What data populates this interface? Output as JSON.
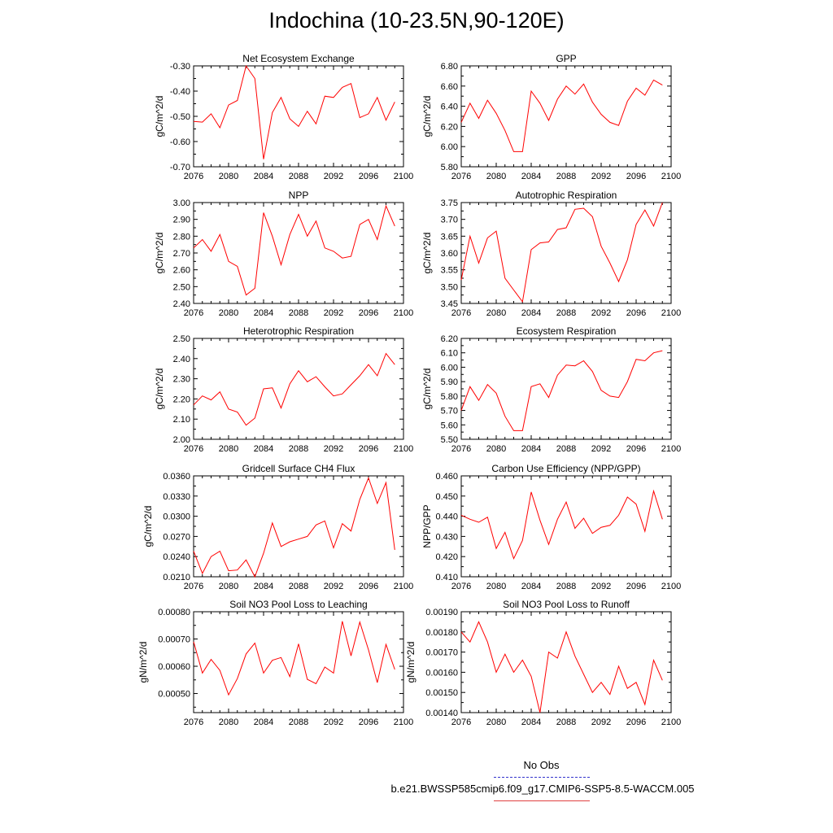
{
  "title": "Indochina (10-23.5N,90-120E)",
  "legend": {
    "obs_label": "No Obs",
    "obs_color": "#3333cc",
    "model_label": "b.e21.BWSSP585cmip6.f09_g17.CMIP6-SSP5-8.5-WACCM.005",
    "model_color": "#e04040"
  },
  "line_color": "#ff0000",
  "chart_data": [
    {
      "type": "line",
      "title": "Net Ecosystem Exchange",
      "ylabel": "gC/m^2/d",
      "xlim": [
        2076,
        2100
      ],
      "xticks": [
        2076,
        2080,
        2084,
        2088,
        2092,
        2096,
        2100
      ],
      "ylim": [
        -0.7,
        -0.3
      ],
      "yticks": [
        "-0.70",
        "-0.60",
        "-0.50",
        "-0.40",
        "-0.30"
      ],
      "x": [
        2076,
        2077,
        2078,
        2079,
        2080,
        2081,
        2082,
        2083,
        2084,
        2085,
        2086,
        2087,
        2088,
        2089,
        2090,
        2091,
        2092,
        2093,
        2094,
        2095,
        2096,
        2097,
        2098,
        2099
      ],
      "values": [
        -0.52,
        -0.523,
        -0.49,
        -0.545,
        -0.455,
        -0.437,
        -0.3,
        -0.35,
        -0.67,
        -0.485,
        -0.425,
        -0.51,
        -0.54,
        -0.48,
        -0.53,
        -0.42,
        -0.425,
        -0.385,
        -0.37,
        -0.505,
        -0.49,
        -0.425,
        -0.515,
        -0.443
      ]
    },
    {
      "type": "line",
      "title": "GPP",
      "ylabel": "gC/m^2/d",
      "xlim": [
        2076,
        2100
      ],
      "xticks": [
        2076,
        2080,
        2084,
        2088,
        2092,
        2096,
        2100
      ],
      "ylim": [
        5.8,
        6.8
      ],
      "yticks": [
        "5.80",
        "6.00",
        "6.20",
        "6.40",
        "6.60",
        "6.80"
      ],
      "x": [
        2076,
        2077,
        2078,
        2079,
        2080,
        2081,
        2082,
        2083,
        2084,
        2085,
        2086,
        2087,
        2088,
        2089,
        2090,
        2091,
        2092,
        2093,
        2094,
        2095,
        2096,
        2097,
        2098,
        2099
      ],
      "values": [
        6.24,
        6.43,
        6.28,
        6.46,
        6.33,
        6.16,
        5.95,
        5.95,
        6.55,
        6.43,
        6.26,
        6.47,
        6.6,
        6.52,
        6.62,
        6.44,
        6.32,
        6.24,
        6.21,
        6.45,
        6.58,
        6.51,
        6.66,
        6.61
      ]
    },
    {
      "type": "line",
      "title": "NPP",
      "ylabel": "gC/m^2/d",
      "xlim": [
        2076,
        2100
      ],
      "xticks": [
        2076,
        2080,
        2084,
        2088,
        2092,
        2096,
        2100
      ],
      "ylim": [
        2.4,
        3.0
      ],
      "yticks": [
        "2.40",
        "2.50",
        "2.60",
        "2.70",
        "2.80",
        "2.90",
        "3.00"
      ],
      "x": [
        2076,
        2077,
        2078,
        2079,
        2080,
        2081,
        2082,
        2083,
        2084,
        2085,
        2086,
        2087,
        2088,
        2089,
        2090,
        2091,
        2092,
        2093,
        2094,
        2095,
        2096,
        2097,
        2098,
        2099
      ],
      "values": [
        2.73,
        2.78,
        2.71,
        2.81,
        2.65,
        2.62,
        2.45,
        2.49,
        2.94,
        2.8,
        2.63,
        2.81,
        2.93,
        2.8,
        2.89,
        2.73,
        2.71,
        2.67,
        2.68,
        2.87,
        2.9,
        2.78,
        2.98,
        2.86
      ]
    },
    {
      "type": "line",
      "title": "Autotrophic Respiration",
      "ylabel": "gC/m^2/d",
      "xlim": [
        2076,
        2100
      ],
      "xticks": [
        2076,
        2080,
        2084,
        2088,
        2092,
        2096,
        2100
      ],
      "ylim": [
        3.45,
        3.75
      ],
      "yticks": [
        "3.45",
        "3.50",
        "3.55",
        "3.60",
        "3.65",
        "3.70",
        "3.75"
      ],
      "x": [
        2076,
        2077,
        2078,
        2079,
        2080,
        2081,
        2082,
        2083,
        2084,
        2085,
        2086,
        2087,
        2088,
        2089,
        2090,
        2091,
        2092,
        2093,
        2094,
        2095,
        2096,
        2097,
        2098,
        2099
      ],
      "values": [
        3.52,
        3.65,
        3.57,
        3.645,
        3.665,
        3.525,
        3.49,
        3.455,
        3.61,
        3.63,
        3.633,
        3.67,
        3.675,
        3.73,
        3.733,
        3.708,
        3.62,
        3.57,
        3.515,
        3.58,
        3.685,
        3.728,
        3.68,
        3.75
      ]
    },
    {
      "type": "line",
      "title": "Heterotrophic Respiration",
      "ylabel": "gC/m^2/d",
      "xlim": [
        2076,
        2100
      ],
      "xticks": [
        2076,
        2080,
        2084,
        2088,
        2092,
        2096,
        2100
      ],
      "ylim": [
        2.0,
        2.5
      ],
      "yticks": [
        "2.00",
        "2.10",
        "2.20",
        "2.30",
        "2.40",
        "2.50"
      ],
      "x": [
        2076,
        2077,
        2078,
        2079,
        2080,
        2081,
        2082,
        2083,
        2084,
        2085,
        2086,
        2087,
        2088,
        2089,
        2090,
        2091,
        2092,
        2093,
        2094,
        2095,
        2096,
        2097,
        2098,
        2099
      ],
      "values": [
        2.17,
        2.215,
        2.195,
        2.235,
        2.15,
        2.135,
        2.07,
        2.105,
        2.25,
        2.255,
        2.155,
        2.275,
        2.34,
        2.285,
        2.31,
        2.26,
        2.215,
        2.225,
        2.27,
        2.315,
        2.37,
        2.315,
        2.425,
        2.37
      ]
    },
    {
      "type": "line",
      "title": "Ecosystem Respiration",
      "ylabel": "gC/m^2/d",
      "xlim": [
        2076,
        2100
      ],
      "xticks": [
        2076,
        2080,
        2084,
        2088,
        2092,
        2096,
        2100
      ],
      "ylim": [
        5.5,
        6.2
      ],
      "yticks": [
        "5.50",
        "5.60",
        "5.70",
        "5.80",
        "5.90",
        "6.00",
        "6.10",
        "6.20"
      ],
      "x": [
        2076,
        2077,
        2078,
        2079,
        2080,
        2081,
        2082,
        2083,
        2084,
        2085,
        2086,
        2087,
        2088,
        2089,
        2090,
        2091,
        2092,
        2093,
        2094,
        2095,
        2096,
        2097,
        2098,
        2099
      ],
      "values": [
        5.7,
        5.865,
        5.77,
        5.88,
        5.82,
        5.66,
        5.56,
        5.56,
        5.865,
        5.885,
        5.79,
        5.945,
        6.015,
        6.01,
        6.045,
        5.97,
        5.84,
        5.8,
        5.79,
        5.9,
        6.055,
        6.045,
        6.1,
        6.115
      ]
    },
    {
      "type": "line",
      "title": "Gridcell Surface CH4 Flux",
      "ylabel": "gC/m^2/d",
      "xlim": [
        2076,
        2100
      ],
      "xticks": [
        2076,
        2080,
        2084,
        2088,
        2092,
        2096,
        2100
      ],
      "ylim": [
        0.021,
        0.036
      ],
      "yticks": [
        "0.0210",
        "0.0240",
        "0.0270",
        "0.0300",
        "0.0330",
        "0.0360"
      ],
      "x": [
        2076,
        2077,
        2078,
        2079,
        2080,
        2081,
        2082,
        2083,
        2084,
        2085,
        2086,
        2087,
        2088,
        2089,
        2090,
        2091,
        2092,
        2093,
        2094,
        2095,
        2096,
        2097,
        2098,
        2099
      ],
      "values": [
        0.0248,
        0.0215,
        0.024,
        0.0248,
        0.0219,
        0.022,
        0.0235,
        0.021,
        0.0245,
        0.029,
        0.0255,
        0.0262,
        0.0266,
        0.027,
        0.0287,
        0.0293,
        0.0253,
        0.0289,
        0.0278,
        0.0325,
        0.0357,
        0.0319,
        0.035,
        0.025
      ]
    },
    {
      "type": "line",
      "title": "Carbon Use Efficiency (NPP/GPP)",
      "ylabel": "NPP/GPP",
      "xlim": [
        2076,
        2100
      ],
      "xticks": [
        2076,
        2080,
        2084,
        2088,
        2092,
        2096,
        2100
      ],
      "ylim": [
        0.41,
        0.46
      ],
      "yticks": [
        "0.410",
        "0.420",
        "0.430",
        "0.440",
        "0.450",
        "0.460"
      ],
      "x": [
        2076,
        2077,
        2078,
        2079,
        2080,
        2081,
        2082,
        2083,
        2084,
        2085,
        2086,
        2087,
        2088,
        2089,
        2090,
        2091,
        2092,
        2093,
        2094,
        2095,
        2096,
        2097,
        2098,
        2099
      ],
      "values": [
        0.4405,
        0.4385,
        0.437,
        0.4395,
        0.424,
        0.432,
        0.419,
        0.428,
        0.452,
        0.438,
        0.426,
        0.4385,
        0.447,
        0.434,
        0.439,
        0.4315,
        0.4345,
        0.4355,
        0.4405,
        0.4495,
        0.446,
        0.4325,
        0.4525,
        0.4385
      ]
    },
    {
      "type": "line",
      "title": "Soil NO3 Pool Loss to Leaching",
      "ylabel": "gN/m^2/d",
      "xlim": [
        2076,
        2100
      ],
      "xticks": [
        2076,
        2080,
        2084,
        2088,
        2092,
        2096,
        2100
      ],
      "ylim": [
        0.00043,
        0.0008
      ],
      "yticks": [
        "0.00050",
        "0.00060",
        "0.00070",
        "0.00080"
      ],
      "x": [
        2076,
        2077,
        2078,
        2079,
        2080,
        2081,
        2082,
        2083,
        2084,
        2085,
        2086,
        2087,
        2088,
        2089,
        2090,
        2091,
        2092,
        2093,
        2094,
        2095,
        2096,
        2097,
        2098,
        2099
      ],
      "values": [
        0.00069,
        0.000575,
        0.000625,
        0.000585,
        0.000495,
        0.000555,
        0.000645,
        0.000685,
        0.000575,
        0.000622,
        0.000632,
        0.000562,
        0.000682,
        0.000552,
        0.000536,
        0.000597,
        0.000575,
        0.000765,
        0.000638,
        0.000762,
        0.00066,
        0.00054,
        0.00068,
        0.000588
      ]
    },
    {
      "type": "line",
      "title": "Soil NO3 Pool Loss to Runoff",
      "ylabel": "gN/m^2/d",
      "xlim": [
        2076,
        2100
      ],
      "xticks": [
        2076,
        2080,
        2084,
        2088,
        2092,
        2096,
        2100
      ],
      "ylim": [
        0.0014,
        0.0019
      ],
      "yticks": [
        "0.00140",
        "0.00150",
        "0.00160",
        "0.00170",
        "0.00180",
        "0.00190"
      ],
      "x": [
        2076,
        2077,
        2078,
        2079,
        2080,
        2081,
        2082,
        2083,
        2084,
        2085,
        2086,
        2087,
        2088,
        2089,
        2090,
        2091,
        2092,
        2093,
        2094,
        2095,
        2096,
        2097,
        2098,
        2099
      ],
      "values": [
        0.0018,
        0.00175,
        0.00185,
        0.00175,
        0.0016,
        0.00169,
        0.0016,
        0.00166,
        0.00158,
        0.0014,
        0.0017,
        0.00167,
        0.0018,
        0.00168,
        0.00159,
        0.0015,
        0.00155,
        0.00149,
        0.00163,
        0.00152,
        0.00155,
        0.00144,
        0.00166,
        0.00156
      ]
    }
  ]
}
